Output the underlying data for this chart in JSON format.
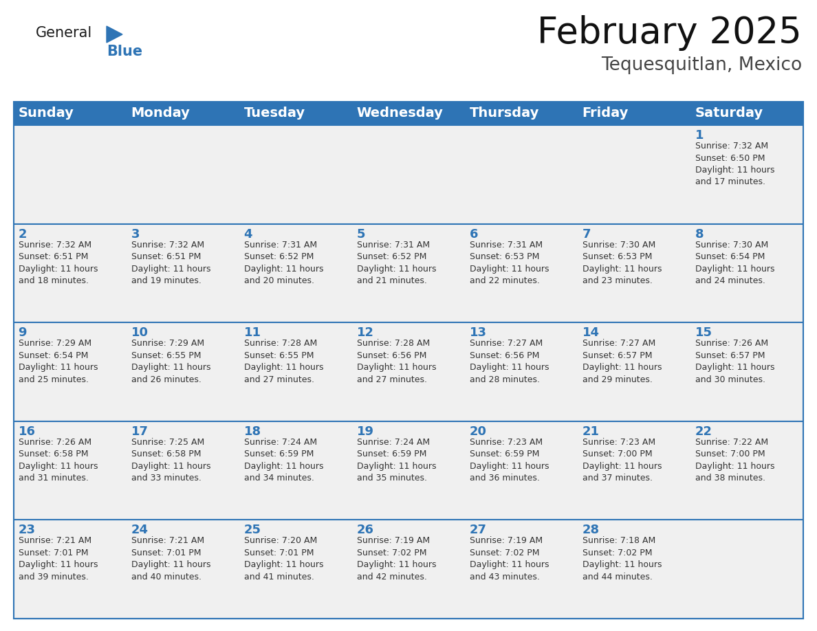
{
  "title": "February 2025",
  "subtitle": "Tequesquitlan, Mexico",
  "header_color": "#2E74B5",
  "header_text_color": "#FFFFFF",
  "cell_bg_color": "#FFFFFF",
  "cell_alt_bg": "#F0F0F0",
  "border_color": "#2E74B5",
  "sep_color": "#2E74B5",
  "day_names": [
    "Sunday",
    "Monday",
    "Tuesday",
    "Wednesday",
    "Thursday",
    "Friday",
    "Saturday"
  ],
  "title_fontsize": 38,
  "subtitle_fontsize": 19,
  "header_fontsize": 14,
  "day_num_fontsize": 13,
  "cell_text_fontsize": 9.0,
  "logo_general_fontsize": 15,
  "logo_blue_fontsize": 15,
  "weeks": [
    [
      {
        "day": null,
        "info": null
      },
      {
        "day": null,
        "info": null
      },
      {
        "day": null,
        "info": null
      },
      {
        "day": null,
        "info": null
      },
      {
        "day": null,
        "info": null
      },
      {
        "day": null,
        "info": null
      },
      {
        "day": 1,
        "info": "Sunrise: 7:32 AM\nSunset: 6:50 PM\nDaylight: 11 hours\nand 17 minutes."
      }
    ],
    [
      {
        "day": 2,
        "info": "Sunrise: 7:32 AM\nSunset: 6:51 PM\nDaylight: 11 hours\nand 18 minutes."
      },
      {
        "day": 3,
        "info": "Sunrise: 7:32 AM\nSunset: 6:51 PM\nDaylight: 11 hours\nand 19 minutes."
      },
      {
        "day": 4,
        "info": "Sunrise: 7:31 AM\nSunset: 6:52 PM\nDaylight: 11 hours\nand 20 minutes."
      },
      {
        "day": 5,
        "info": "Sunrise: 7:31 AM\nSunset: 6:52 PM\nDaylight: 11 hours\nand 21 minutes."
      },
      {
        "day": 6,
        "info": "Sunrise: 7:31 AM\nSunset: 6:53 PM\nDaylight: 11 hours\nand 22 minutes."
      },
      {
        "day": 7,
        "info": "Sunrise: 7:30 AM\nSunset: 6:53 PM\nDaylight: 11 hours\nand 23 minutes."
      },
      {
        "day": 8,
        "info": "Sunrise: 7:30 AM\nSunset: 6:54 PM\nDaylight: 11 hours\nand 24 minutes."
      }
    ],
    [
      {
        "day": 9,
        "info": "Sunrise: 7:29 AM\nSunset: 6:54 PM\nDaylight: 11 hours\nand 25 minutes."
      },
      {
        "day": 10,
        "info": "Sunrise: 7:29 AM\nSunset: 6:55 PM\nDaylight: 11 hours\nand 26 minutes."
      },
      {
        "day": 11,
        "info": "Sunrise: 7:28 AM\nSunset: 6:55 PM\nDaylight: 11 hours\nand 27 minutes."
      },
      {
        "day": 12,
        "info": "Sunrise: 7:28 AM\nSunset: 6:56 PM\nDaylight: 11 hours\nand 27 minutes."
      },
      {
        "day": 13,
        "info": "Sunrise: 7:27 AM\nSunset: 6:56 PM\nDaylight: 11 hours\nand 28 minutes."
      },
      {
        "day": 14,
        "info": "Sunrise: 7:27 AM\nSunset: 6:57 PM\nDaylight: 11 hours\nand 29 minutes."
      },
      {
        "day": 15,
        "info": "Sunrise: 7:26 AM\nSunset: 6:57 PM\nDaylight: 11 hours\nand 30 minutes."
      }
    ],
    [
      {
        "day": 16,
        "info": "Sunrise: 7:26 AM\nSunset: 6:58 PM\nDaylight: 11 hours\nand 31 minutes."
      },
      {
        "day": 17,
        "info": "Sunrise: 7:25 AM\nSunset: 6:58 PM\nDaylight: 11 hours\nand 33 minutes."
      },
      {
        "day": 18,
        "info": "Sunrise: 7:24 AM\nSunset: 6:59 PM\nDaylight: 11 hours\nand 34 minutes."
      },
      {
        "day": 19,
        "info": "Sunrise: 7:24 AM\nSunset: 6:59 PM\nDaylight: 11 hours\nand 35 minutes."
      },
      {
        "day": 20,
        "info": "Sunrise: 7:23 AM\nSunset: 6:59 PM\nDaylight: 11 hours\nand 36 minutes."
      },
      {
        "day": 21,
        "info": "Sunrise: 7:23 AM\nSunset: 7:00 PM\nDaylight: 11 hours\nand 37 minutes."
      },
      {
        "day": 22,
        "info": "Sunrise: 7:22 AM\nSunset: 7:00 PM\nDaylight: 11 hours\nand 38 minutes."
      }
    ],
    [
      {
        "day": 23,
        "info": "Sunrise: 7:21 AM\nSunset: 7:01 PM\nDaylight: 11 hours\nand 39 minutes."
      },
      {
        "day": 24,
        "info": "Sunrise: 7:21 AM\nSunset: 7:01 PM\nDaylight: 11 hours\nand 40 minutes."
      },
      {
        "day": 25,
        "info": "Sunrise: 7:20 AM\nSunset: 7:01 PM\nDaylight: 11 hours\nand 41 minutes."
      },
      {
        "day": 26,
        "info": "Sunrise: 7:19 AM\nSunset: 7:02 PM\nDaylight: 11 hours\nand 42 minutes."
      },
      {
        "day": 27,
        "info": "Sunrise: 7:19 AM\nSunset: 7:02 PM\nDaylight: 11 hours\nand 43 minutes."
      },
      {
        "day": 28,
        "info": "Sunrise: 7:18 AM\nSunset: 7:02 PM\nDaylight: 11 hours\nand 44 minutes."
      },
      {
        "day": null,
        "info": null
      }
    ]
  ]
}
